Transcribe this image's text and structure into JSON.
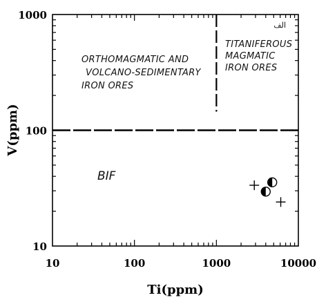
{
  "chart_data": {
    "type": "scatter",
    "xlabel": "Ti(ppm)",
    "ylabel": "V(ppm)",
    "x_scale": "log",
    "y_scale": "log",
    "xlim": [
      10,
      10000
    ],
    "ylim": [
      10,
      1000
    ],
    "x_ticks": [
      {
        "value": 10,
        "label": "10"
      },
      {
        "value": 100,
        "label": "100"
      },
      {
        "value": 1000,
        "label": "1000"
      },
      {
        "value": 10000,
        "label": "10000"
      }
    ],
    "y_ticks": [
      {
        "value": 10,
        "label": "10"
      },
      {
        "value": 100,
        "label": "100"
      },
      {
        "value": 1000,
        "label": "1000"
      }
    ],
    "grid": false,
    "boundaries": [
      {
        "orientation": "horizontal",
        "value": 100,
        "from": 10,
        "to": 10000,
        "style": "long-dash"
      },
      {
        "orientation": "vertical",
        "value": 1000,
        "from": 145,
        "to": 1000,
        "style": "dash"
      }
    ],
    "fields": [
      {
        "lines": [
          "ORTHOMAGMATIC AND",
          "VOLCANO-SEDIMENTARY",
          "IRON ORES"
        ]
      },
      {
        "lines": [
          "TITANIFEROUS",
          "MAGMATIC",
          "IRON  ORES"
        ]
      },
      {
        "lines": [
          "BIF"
        ]
      }
    ],
    "corner_tag": "الف",
    "series": [
      {
        "marker": "plus",
        "points": [
          [
            2900,
            33.5
          ],
          [
            6100,
            24
          ]
        ]
      },
      {
        "marker": "half-filled-circle",
        "points": [
          [
            4800,
            35.5
          ],
          [
            4000,
            29.5
          ]
        ]
      }
    ]
  }
}
